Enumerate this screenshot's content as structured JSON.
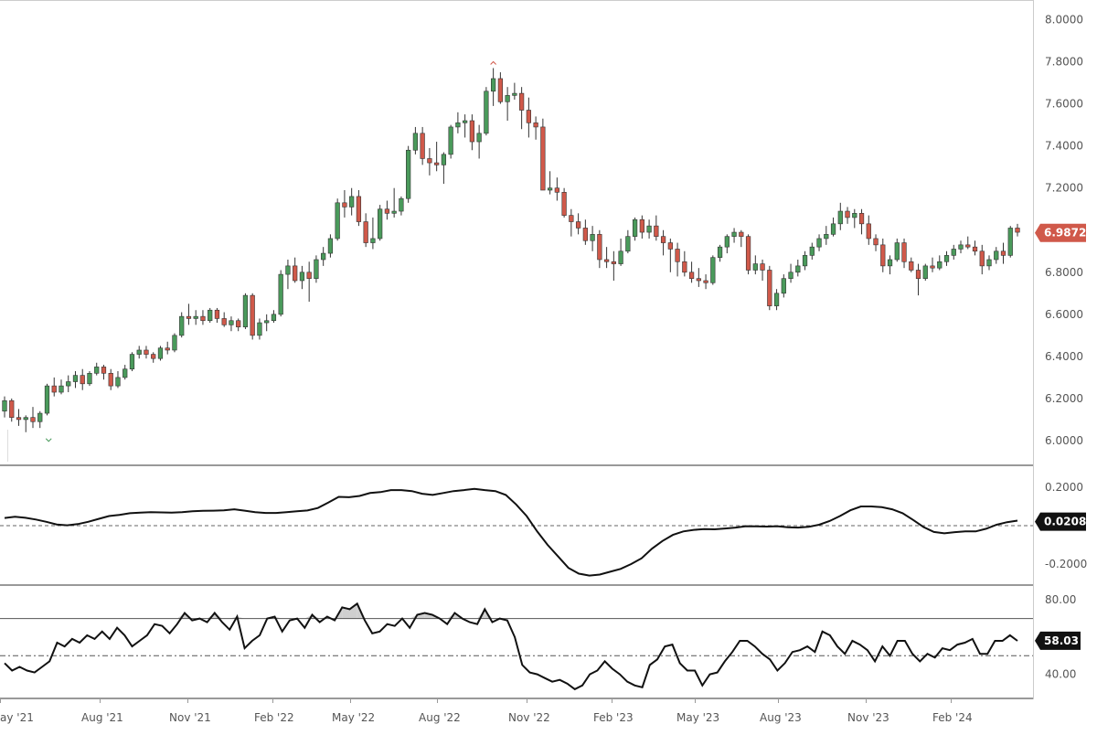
{
  "chart_data": [
    {
      "type": "candlestick",
      "panel": "price",
      "y_ticks": [
        "8.0000",
        "7.8000",
        "7.6000",
        "7.4000",
        "7.2000",
        "7.0000",
        "6.8000",
        "6.6000",
        "6.4000",
        "6.2000",
        "6.0000"
      ],
      "ylim": [
        5.9,
        8.05
      ],
      "last_value": "6.9872",
      "up_color": "#4a9a5b",
      "down_color": "#d0594a",
      "candles": [
        {
          "o": 6.14,
          "h": 6.21,
          "l": 6.11,
          "c": 6.19
        },
        {
          "o": 6.19,
          "h": 6.2,
          "l": 6.09,
          "c": 6.11
        },
        {
          "o": 6.11,
          "h": 6.15,
          "l": 6.07,
          "c": 6.1
        },
        {
          "o": 6.1,
          "h": 6.12,
          "l": 6.04,
          "c": 6.11
        },
        {
          "o": 6.11,
          "h": 6.16,
          "l": 6.06,
          "c": 6.09
        },
        {
          "o": 6.09,
          "h": 6.14,
          "l": 6.06,
          "c": 6.13
        },
        {
          "o": 6.13,
          "h": 6.27,
          "l": 6.12,
          "c": 6.26
        },
        {
          "o": 6.26,
          "h": 6.3,
          "l": 6.21,
          "c": 6.23
        },
        {
          "o": 6.23,
          "h": 6.29,
          "l": 6.22,
          "c": 6.26
        },
        {
          "o": 6.26,
          "h": 6.31,
          "l": 6.23,
          "c": 6.28
        },
        {
          "o": 6.28,
          "h": 6.33,
          "l": 6.25,
          "c": 6.31
        },
        {
          "o": 6.31,
          "h": 6.34,
          "l": 6.24,
          "c": 6.27
        },
        {
          "o": 6.27,
          "h": 6.33,
          "l": 6.26,
          "c": 6.32
        },
        {
          "o": 6.32,
          "h": 6.37,
          "l": 6.31,
          "c": 6.35
        },
        {
          "o": 6.35,
          "h": 6.36,
          "l": 6.29,
          "c": 6.32
        },
        {
          "o": 6.32,
          "h": 6.34,
          "l": 6.24,
          "c": 6.26
        },
        {
          "o": 6.26,
          "h": 6.33,
          "l": 6.25,
          "c": 6.3
        },
        {
          "o": 6.3,
          "h": 6.36,
          "l": 6.29,
          "c": 6.34
        },
        {
          "o": 6.34,
          "h": 6.42,
          "l": 6.33,
          "c": 6.41
        },
        {
          "o": 6.41,
          "h": 6.45,
          "l": 6.39,
          "c": 6.43
        },
        {
          "o": 6.43,
          "h": 6.45,
          "l": 6.39,
          "c": 6.41
        },
        {
          "o": 6.41,
          "h": 6.42,
          "l": 6.37,
          "c": 6.39
        },
        {
          "o": 6.39,
          "h": 6.45,
          "l": 6.38,
          "c": 6.44
        },
        {
          "o": 6.44,
          "h": 6.47,
          "l": 6.41,
          "c": 6.43
        },
        {
          "o": 6.43,
          "h": 6.51,
          "l": 6.42,
          "c": 6.5
        },
        {
          "o": 6.5,
          "h": 6.61,
          "l": 6.49,
          "c": 6.59
        },
        {
          "o": 6.59,
          "h": 6.65,
          "l": 6.55,
          "c": 6.58
        },
        {
          "o": 6.58,
          "h": 6.62,
          "l": 6.55,
          "c": 6.59
        },
        {
          "o": 6.59,
          "h": 6.62,
          "l": 6.55,
          "c": 6.57
        },
        {
          "o": 6.57,
          "h": 6.63,
          "l": 6.56,
          "c": 6.62
        },
        {
          "o": 6.62,
          "h": 6.63,
          "l": 6.56,
          "c": 6.58
        },
        {
          "o": 6.58,
          "h": 6.61,
          "l": 6.54,
          "c": 6.55
        },
        {
          "o": 6.55,
          "h": 6.59,
          "l": 6.52,
          "c": 6.57
        },
        {
          "o": 6.57,
          "h": 6.58,
          "l": 6.52,
          "c": 6.54
        },
        {
          "o": 6.54,
          "h": 6.7,
          "l": 6.53,
          "c": 6.69
        },
        {
          "o": 6.69,
          "h": 6.7,
          "l": 6.48,
          "c": 6.5
        },
        {
          "o": 6.5,
          "h": 6.58,
          "l": 6.48,
          "c": 6.56
        },
        {
          "o": 6.56,
          "h": 6.6,
          "l": 6.52,
          "c": 6.57
        },
        {
          "o": 6.57,
          "h": 6.62,
          "l": 6.56,
          "c": 6.6
        },
        {
          "o": 6.6,
          "h": 6.81,
          "l": 6.59,
          "c": 6.79
        },
        {
          "o": 6.79,
          "h": 6.86,
          "l": 6.72,
          "c": 6.83
        },
        {
          "o": 6.83,
          "h": 6.87,
          "l": 6.75,
          "c": 6.76
        },
        {
          "o": 6.76,
          "h": 6.83,
          "l": 6.72,
          "c": 6.8
        },
        {
          "o": 6.8,
          "h": 6.85,
          "l": 6.66,
          "c": 6.77
        },
        {
          "o": 6.77,
          "h": 6.88,
          "l": 6.75,
          "c": 6.86
        },
        {
          "o": 6.86,
          "h": 6.92,
          "l": 6.83,
          "c": 6.89
        },
        {
          "o": 6.89,
          "h": 6.98,
          "l": 6.87,
          "c": 6.96
        },
        {
          "o": 6.96,
          "h": 7.15,
          "l": 6.95,
          "c": 7.13
        },
        {
          "o": 7.13,
          "h": 7.19,
          "l": 7.06,
          "c": 7.11
        },
        {
          "o": 7.11,
          "h": 7.2,
          "l": 7.07,
          "c": 7.16
        },
        {
          "o": 7.16,
          "h": 7.19,
          "l": 7.02,
          "c": 7.04
        },
        {
          "o": 7.04,
          "h": 7.08,
          "l": 6.92,
          "c": 6.94
        },
        {
          "o": 6.94,
          "h": 7.06,
          "l": 6.91,
          "c": 6.96
        },
        {
          "o": 6.96,
          "h": 7.12,
          "l": 6.95,
          "c": 7.1
        },
        {
          "o": 7.1,
          "h": 7.14,
          "l": 7.05,
          "c": 7.08
        },
        {
          "o": 7.08,
          "h": 7.2,
          "l": 7.06,
          "c": 7.09
        },
        {
          "o": 7.09,
          "h": 7.16,
          "l": 7.07,
          "c": 7.15
        },
        {
          "o": 7.15,
          "h": 7.4,
          "l": 7.13,
          "c": 7.38
        },
        {
          "o": 7.38,
          "h": 7.49,
          "l": 7.36,
          "c": 7.46
        },
        {
          "o": 7.46,
          "h": 7.49,
          "l": 7.31,
          "c": 7.34
        },
        {
          "o": 7.34,
          "h": 7.39,
          "l": 7.26,
          "c": 7.32
        },
        {
          "o": 7.32,
          "h": 7.42,
          "l": 7.28,
          "c": 7.31
        },
        {
          "o": 7.31,
          "h": 7.37,
          "l": 7.22,
          "c": 7.36
        },
        {
          "o": 7.36,
          "h": 7.5,
          "l": 7.34,
          "c": 7.49
        },
        {
          "o": 7.49,
          "h": 7.56,
          "l": 7.46,
          "c": 7.51
        },
        {
          "o": 7.51,
          "h": 7.55,
          "l": 7.44,
          "c": 7.52
        },
        {
          "o": 7.52,
          "h": 7.55,
          "l": 7.38,
          "c": 7.42
        },
        {
          "o": 7.42,
          "h": 7.5,
          "l": 7.34,
          "c": 7.46
        },
        {
          "o": 7.46,
          "h": 7.68,
          "l": 7.45,
          "c": 7.66
        },
        {
          "o": 7.66,
          "h": 7.77,
          "l": 7.59,
          "c": 7.72
        },
        {
          "o": 7.72,
          "h": 7.75,
          "l": 7.6,
          "c": 7.61
        },
        {
          "o": 7.61,
          "h": 7.68,
          "l": 7.52,
          "c": 7.64
        },
        {
          "o": 7.64,
          "h": 7.7,
          "l": 7.62,
          "c": 7.65
        },
        {
          "o": 7.65,
          "h": 7.68,
          "l": 7.48,
          "c": 7.57
        },
        {
          "o": 7.57,
          "h": 7.63,
          "l": 7.44,
          "c": 7.51
        },
        {
          "o": 7.51,
          "h": 7.54,
          "l": 7.43,
          "c": 7.49
        },
        {
          "o": 7.49,
          "h": 7.53,
          "l": 7.2,
          "c": 7.19
        },
        {
          "o": 7.19,
          "h": 7.28,
          "l": 7.17,
          "c": 7.2
        },
        {
          "o": 7.2,
          "h": 7.25,
          "l": 7.14,
          "c": 7.18
        },
        {
          "o": 7.18,
          "h": 7.2,
          "l": 7.06,
          "c": 7.07
        },
        {
          "o": 7.07,
          "h": 7.1,
          "l": 6.97,
          "c": 7.04
        },
        {
          "o": 7.04,
          "h": 7.08,
          "l": 6.98,
          "c": 7.01
        },
        {
          "o": 7.01,
          "h": 7.05,
          "l": 6.93,
          "c": 6.95
        },
        {
          "o": 6.95,
          "h": 7.02,
          "l": 6.9,
          "c": 6.98
        },
        {
          "o": 6.98,
          "h": 7.0,
          "l": 6.82,
          "c": 6.86
        },
        {
          "o": 6.86,
          "h": 6.92,
          "l": 6.82,
          "c": 6.85
        },
        {
          "o": 6.85,
          "h": 6.9,
          "l": 6.76,
          "c": 6.84
        },
        {
          "o": 6.84,
          "h": 6.96,
          "l": 6.83,
          "c": 6.9
        },
        {
          "o": 6.9,
          "h": 7.0,
          "l": 6.89,
          "c": 6.97
        },
        {
          "o": 6.97,
          "h": 7.06,
          "l": 6.95,
          "c": 7.05
        },
        {
          "o": 7.05,
          "h": 7.07,
          "l": 6.96,
          "c": 6.99
        },
        {
          "o": 6.99,
          "h": 7.05,
          "l": 6.96,
          "c": 7.02
        },
        {
          "o": 7.02,
          "h": 7.07,
          "l": 6.95,
          "c": 6.97
        },
        {
          "o": 6.97,
          "h": 7.0,
          "l": 6.88,
          "c": 6.94
        },
        {
          "o": 6.94,
          "h": 6.96,
          "l": 6.8,
          "c": 6.91
        },
        {
          "o": 6.91,
          "h": 6.94,
          "l": 6.78,
          "c": 6.85
        },
        {
          "o": 6.85,
          "h": 6.9,
          "l": 6.78,
          "c": 6.8
        },
        {
          "o": 6.8,
          "h": 6.85,
          "l": 6.75,
          "c": 6.77
        },
        {
          "o": 6.77,
          "h": 6.82,
          "l": 6.73,
          "c": 6.76
        },
        {
          "o": 6.76,
          "h": 6.79,
          "l": 6.72,
          "c": 6.75
        },
        {
          "o": 6.75,
          "h": 6.88,
          "l": 6.74,
          "c": 6.87
        },
        {
          "o": 6.87,
          "h": 6.93,
          "l": 6.85,
          "c": 6.92
        },
        {
          "o": 6.92,
          "h": 6.98,
          "l": 6.89,
          "c": 6.97
        },
        {
          "o": 6.97,
          "h": 7.01,
          "l": 6.94,
          "c": 6.99
        },
        {
          "o": 6.99,
          "h": 7.0,
          "l": 6.92,
          "c": 6.97
        },
        {
          "o": 6.97,
          "h": 6.98,
          "l": 6.79,
          "c": 6.81
        },
        {
          "o": 6.81,
          "h": 6.88,
          "l": 6.79,
          "c": 6.84
        },
        {
          "o": 6.84,
          "h": 6.86,
          "l": 6.76,
          "c": 6.81
        },
        {
          "o": 6.81,
          "h": 6.83,
          "l": 6.62,
          "c": 6.64
        },
        {
          "o": 6.64,
          "h": 6.72,
          "l": 6.62,
          "c": 6.7
        },
        {
          "o": 6.7,
          "h": 6.79,
          "l": 6.68,
          "c": 6.77
        },
        {
          "o": 6.77,
          "h": 6.84,
          "l": 6.75,
          "c": 6.8
        },
        {
          "o": 6.8,
          "h": 6.86,
          "l": 6.78,
          "c": 6.83
        },
        {
          "o": 6.83,
          "h": 6.9,
          "l": 6.81,
          "c": 6.88
        },
        {
          "o": 6.88,
          "h": 6.94,
          "l": 6.86,
          "c": 6.92
        },
        {
          "o": 6.92,
          "h": 6.98,
          "l": 6.9,
          "c": 6.96
        },
        {
          "o": 6.96,
          "h": 7.02,
          "l": 6.93,
          "c": 6.98
        },
        {
          "o": 6.98,
          "h": 7.06,
          "l": 6.97,
          "c": 7.03
        },
        {
          "o": 7.03,
          "h": 7.13,
          "l": 7.0,
          "c": 7.09
        },
        {
          "o": 7.09,
          "h": 7.11,
          "l": 7.03,
          "c": 7.06
        },
        {
          "o": 7.06,
          "h": 7.1,
          "l": 7.01,
          "c": 7.08
        },
        {
          "o": 7.08,
          "h": 7.1,
          "l": 6.98,
          "c": 7.03
        },
        {
          "o": 7.03,
          "h": 7.07,
          "l": 6.93,
          "c": 6.96
        },
        {
          "o": 6.96,
          "h": 6.98,
          "l": 6.9,
          "c": 6.93
        },
        {
          "o": 6.93,
          "h": 6.96,
          "l": 6.8,
          "c": 6.83
        },
        {
          "o": 6.83,
          "h": 6.88,
          "l": 6.79,
          "c": 6.86
        },
        {
          "o": 6.86,
          "h": 6.96,
          "l": 6.85,
          "c": 6.94
        },
        {
          "o": 6.94,
          "h": 6.96,
          "l": 6.82,
          "c": 6.85
        },
        {
          "o": 6.85,
          "h": 6.87,
          "l": 6.8,
          "c": 6.81
        },
        {
          "o": 6.81,
          "h": 6.84,
          "l": 6.69,
          "c": 6.77
        },
        {
          "o": 6.77,
          "h": 6.84,
          "l": 6.76,
          "c": 6.83
        },
        {
          "o": 6.83,
          "h": 6.87,
          "l": 6.8,
          "c": 6.82
        },
        {
          "o": 6.82,
          "h": 6.88,
          "l": 6.81,
          "c": 6.85
        },
        {
          "o": 6.85,
          "h": 6.9,
          "l": 6.83,
          "c": 6.88
        },
        {
          "o": 6.88,
          "h": 6.93,
          "l": 6.86,
          "c": 6.91
        },
        {
          "o": 6.91,
          "h": 6.95,
          "l": 6.89,
          "c": 6.93
        },
        {
          "o": 6.93,
          "h": 6.97,
          "l": 6.91,
          "c": 6.92
        },
        {
          "o": 6.92,
          "h": 6.95,
          "l": 6.88,
          "c": 6.9
        },
        {
          "o": 6.9,
          "h": 6.93,
          "l": 6.79,
          "c": 6.83
        },
        {
          "o": 6.83,
          "h": 6.88,
          "l": 6.81,
          "c": 6.86
        },
        {
          "o": 6.86,
          "h": 6.92,
          "l": 6.84,
          "c": 6.9
        },
        {
          "o": 6.9,
          "h": 6.94,
          "l": 6.84,
          "c": 6.88
        },
        {
          "o": 6.88,
          "h": 7.02,
          "l": 6.87,
          "c": 7.01
        },
        {
          "o": 7.01,
          "h": 7.03,
          "l": 6.97,
          "c": 6.99
        }
      ]
    },
    {
      "type": "line",
      "panel": "oscillator",
      "y_ticks": [
        "0.2000",
        "-0.2000"
      ],
      "ylim": [
        -0.3,
        0.3
      ],
      "reference_line": 0,
      "last_value": "0.0208",
      "values": [
        0.04,
        0.046,
        0.041,
        0.032,
        0.02,
        0.006,
        0.002,
        0.008,
        0.02,
        0.035,
        0.05,
        0.056,
        0.065,
        0.068,
        0.07,
        0.069,
        0.068,
        0.07,
        0.075,
        0.077,
        0.078,
        0.08,
        0.085,
        0.078,
        0.07,
        0.066,
        0.066,
        0.07,
        0.075,
        0.079,
        0.092,
        0.12,
        0.15,
        0.148,
        0.155,
        0.17,
        0.175,
        0.185,
        0.185,
        0.18,
        0.166,
        0.16,
        0.17,
        0.18,
        0.185,
        0.192,
        0.185,
        0.18,
        0.16,
        0.11,
        0.05,
        -0.03,
        -0.1,
        -0.16,
        -0.22,
        -0.25,
        -0.26,
        -0.255,
        -0.24,
        -0.225,
        -0.2,
        -0.17,
        -0.12,
        -0.08,
        -0.048,
        -0.03,
        -0.022,
        -0.018,
        -0.019,
        -0.015,
        -0.01,
        -0.003,
        -0.004,
        -0.005,
        -0.003,
        -0.008,
        -0.01,
        -0.006,
        0.005,
        0.024,
        0.05,
        0.08,
        0.1,
        0.1,
        0.096,
        0.085,
        0.065,
        0.03,
        -0.007,
        -0.033,
        -0.04,
        -0.034,
        -0.03,
        -0.03,
        -0.016,
        0.005,
        0.018,
        0.026
      ],
      "stroke_color": "#111111"
    },
    {
      "type": "line",
      "panel": "rsi",
      "y_ticks": [
        "80.00",
        "40.00"
      ],
      "ylim": [
        28,
        87
      ],
      "upper_band": 70,
      "lower_band": 30,
      "mid_line": 50,
      "last_value": "58.03",
      "values": [
        46,
        42,
        44,
        42,
        41,
        44,
        47,
        57,
        55,
        59,
        57,
        61,
        59,
        63,
        59,
        65,
        61,
        55,
        58,
        61,
        67,
        66,
        62,
        67,
        73,
        69,
        70,
        68,
        73,
        68,
        64,
        71,
        54,
        58,
        61,
        70,
        71,
        63,
        69,
        70,
        65,
        72,
        68,
        71,
        69,
        76,
        75,
        78,
        69,
        62,
        63,
        67,
        66,
        70,
        65,
        72,
        73,
        72,
        70,
        67,
        73,
        70,
        68,
        67,
        75,
        68,
        70,
        69,
        60,
        45,
        41,
        40,
        38,
        36,
        37,
        35,
        32,
        34,
        40,
        42,
        47,
        43,
        40,
        36,
        34,
        33,
        45,
        48,
        55,
        56,
        46,
        42,
        42,
        34,
        40,
        41,
        47,
        52,
        58,
        58,
        55,
        51,
        48,
        42,
        46,
        52,
        53,
        55,
        52,
        63,
        61,
        55,
        51,
        58,
        56,
        53,
        47,
        55,
        50,
        58,
        58,
        51,
        47,
        51,
        49,
        54,
        53,
        56,
        57,
        59,
        51,
        51,
        58,
        58,
        61,
        58
      ]
    }
  ],
  "x_axis": {
    "labels": [
      "ay '21",
      "Aug '21",
      "Nov '21",
      "Feb '22",
      "May '22",
      "Aug '22",
      "Nov '22",
      "Feb '23",
      "May '23",
      "Aug '23",
      "Nov '23",
      "Feb '24"
    ]
  },
  "colors": {
    "grid": "#e6e6e6",
    "price_badge": "#d0594a",
    "dark_badge": "#111111",
    "rsi_fill": "#cfcfcf"
  }
}
